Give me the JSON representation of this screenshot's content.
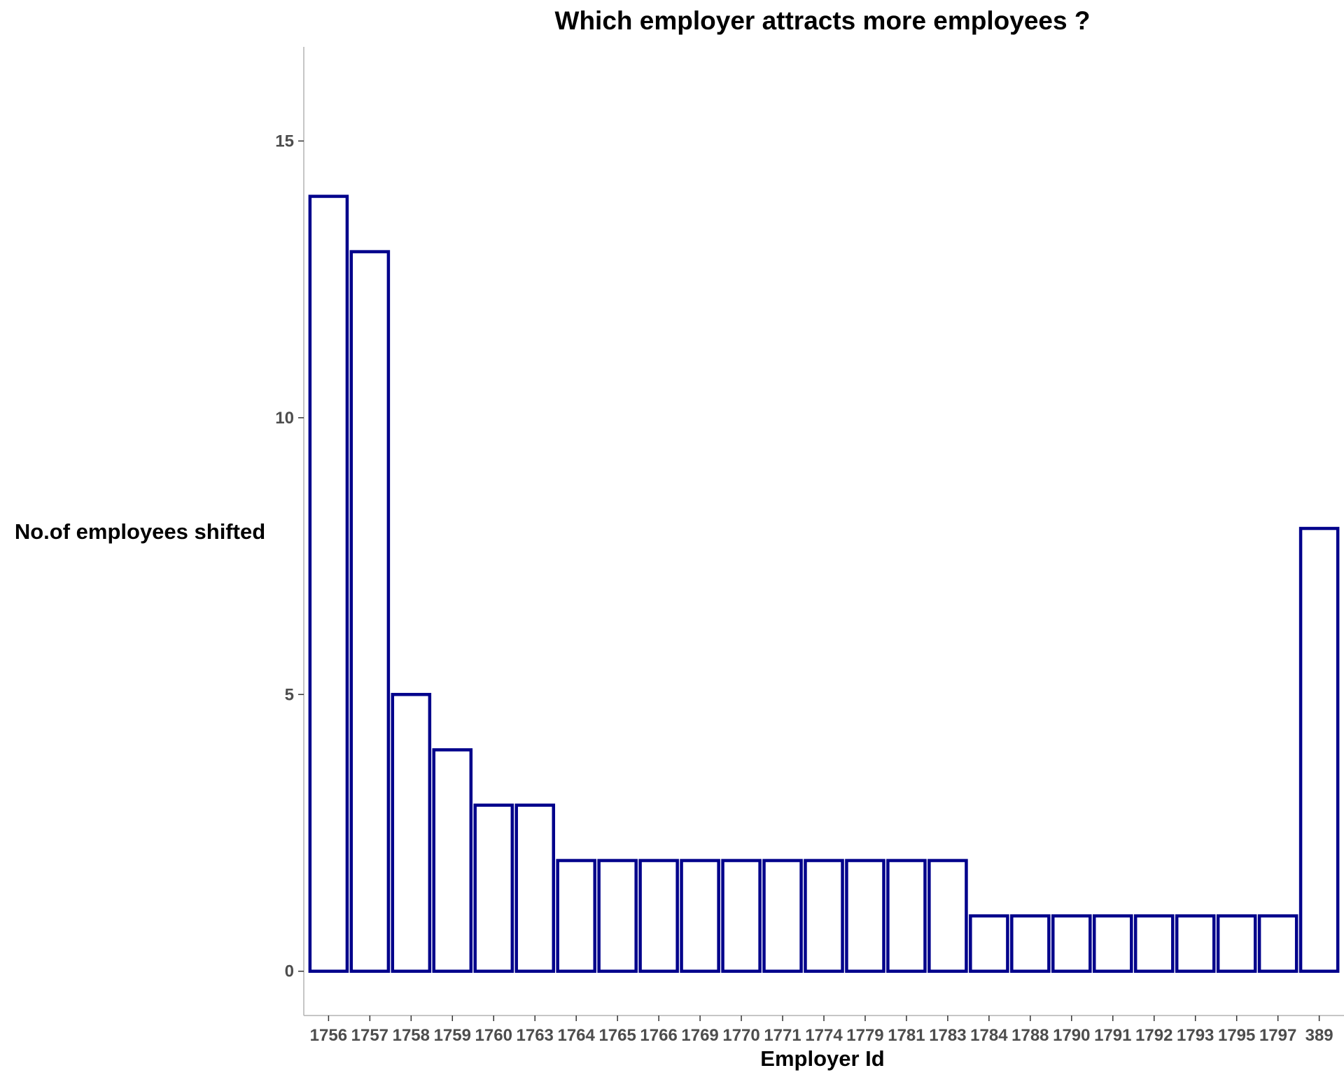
{
  "chart_data": {
    "type": "bar",
    "title": "Which employer attracts more employees ?",
    "xlabel": "Employer Id",
    "ylabel": "No.of employees shifted",
    "categories": [
      "1756",
      "1757",
      "1758",
      "1759",
      "1760",
      "1763",
      "1764",
      "1765",
      "1766",
      "1769",
      "1770",
      "1771",
      "1774",
      "1779",
      "1781",
      "1783",
      "1784",
      "1788",
      "1790",
      "1791",
      "1792",
      "1793",
      "1795",
      "1797",
      "389"
    ],
    "values": [
      14,
      13,
      5,
      4,
      3,
      3,
      2,
      2,
      2,
      2,
      2,
      2,
      2,
      2,
      2,
      2,
      1,
      1,
      1,
      1,
      1,
      1,
      1,
      1,
      8
    ],
    "ylim": [
      -0.8,
      16.7
    ],
    "yticks": [
      0,
      5,
      10,
      15
    ],
    "grid": false,
    "legend": "none",
    "colors": {
      "bar_outline": "#00008b",
      "bar_fill": "#ffffff"
    }
  }
}
